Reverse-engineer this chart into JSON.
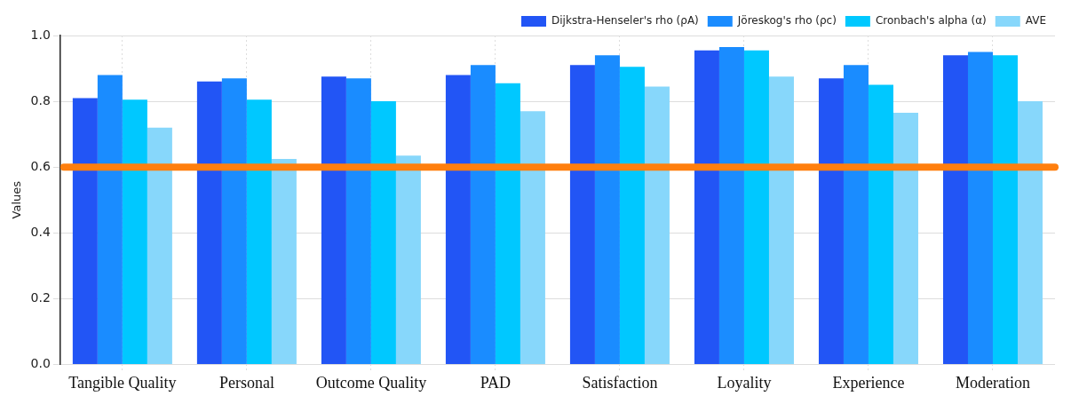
{
  "chart_data": {
    "type": "bar",
    "ylabel": "Values",
    "categories": [
      "Tangible Quality",
      "Personal",
      "Outcome Quality",
      "PAD",
      "Satisfaction",
      "Loyality",
      "Experience",
      "Moderation"
    ],
    "series": [
      {
        "name": "Dijkstra-Henseler's rho (ρA)",
        "color": "#2255f5",
        "values": [
          0.81,
          0.86,
          0.875,
          0.88,
          0.91,
          0.955,
          0.87,
          0.94
        ]
      },
      {
        "name": "Jöreskog's rho (ρc)",
        "color": "#1a8cff",
        "values": [
          0.88,
          0.87,
          0.87,
          0.91,
          0.94,
          0.965,
          0.91,
          0.95
        ]
      },
      {
        "name": "Cronbach's alpha (α)",
        "color": "#00c8ff",
        "values": [
          0.805,
          0.805,
          0.8,
          0.855,
          0.905,
          0.955,
          0.85,
          0.94
        ]
      },
      {
        "name": "AVE",
        "color": "#87d7fb",
        "values": [
          0.72,
          0.625,
          0.635,
          0.77,
          0.845,
          0.875,
          0.765,
          0.8
        ]
      }
    ],
    "ylim": [
      0,
      1.0
    ],
    "yticks": [
      {
        "value": 0,
        "label": "0.0"
      },
      0.2,
      0.4,
      0.6,
      0.8,
      {
        "value": 1,
        "label": "1.0"
      }
    ],
    "ref_lines": [
      {
        "axis": "y",
        "value": 0.6,
        "color": "#ff7f0e"
      }
    ],
    "grid": true,
    "legend": "top right"
  }
}
